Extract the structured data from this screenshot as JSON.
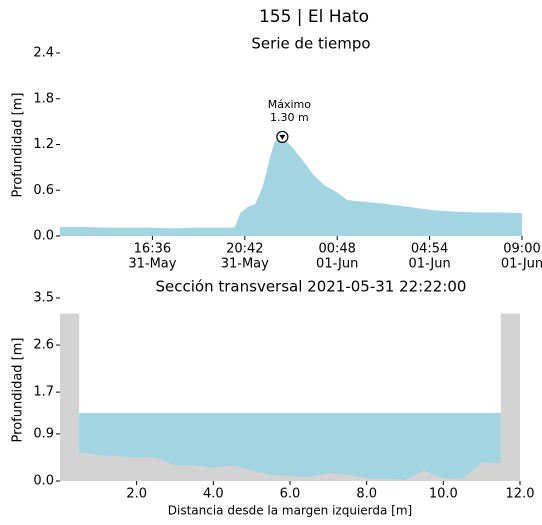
{
  "title": "155 | El Hato",
  "chart_data": [
    {
      "type": "area",
      "title": "Serie de tiempo",
      "y_label": "Profundidad [m]",
      "color": "#a2d4e2",
      "x": [
        "31-May 12:30",
        "31-May 13:30",
        "31-May 14:30",
        "31-May 15:30",
        "31-May 16:30",
        "31-May 17:30",
        "31-May 18:30",
        "31-May 19:30",
        "31-May 20:15",
        "31-May 20:30",
        "31-May 20:50",
        "31-May 21:10",
        "31-May 21:30",
        "31-May 21:45",
        "31-May 22:00",
        "31-May 22:10",
        "31-May 22:22",
        "31-May 22:45",
        "31-May 23:15",
        "31-May 23:45",
        "01-Jun 00:15",
        "01-Jun 00:45",
        "01-Jun 01:15",
        "01-Jun 02:00",
        "01-Jun 03:00",
        "01-Jun 04:00",
        "01-Jun 05:00",
        "01-Jun 06:00",
        "01-Jun 07:00",
        "01-Jun 08:00",
        "01-Jun 09:00"
      ],
      "values": [
        0.12,
        0.12,
        0.11,
        0.11,
        0.11,
        0.1,
        0.11,
        0.11,
        0.11,
        0.3,
        0.38,
        0.42,
        0.65,
        0.95,
        1.22,
        1.28,
        1.3,
        1.18,
        1.0,
        0.8,
        0.66,
        0.58,
        0.47,
        0.45,
        0.42,
        0.38,
        0.34,
        0.32,
        0.31,
        0.31,
        0.3
      ],
      "xlim": [
        "31-May 12:30",
        "01-Jun 09:00"
      ],
      "xticks": [
        {
          "value": "31-May 16:36",
          "label": [
            "16:36",
            "31-May"
          ]
        },
        {
          "value": "31-May 20:42",
          "label": [
            "20:42",
            "31-May"
          ]
        },
        {
          "value": "01-Jun 00:48",
          "label": [
            "00:48",
            "01-Jun"
          ]
        },
        {
          "value": "01-Jun 04:54",
          "label": [
            "04:54",
            "01-Jun"
          ]
        },
        {
          "value": "01-Jun 09:00",
          "label": [
            "09:00",
            "01-Jun"
          ]
        }
      ],
      "ylim": [
        0,
        2.4
      ],
      "yticks": [
        {
          "value": 0,
          "label": "0.0"
        },
        0.6,
        1.2,
        1.8,
        2.4
      ],
      "annotation": {
        "text": "Máximo",
        "value_label": "1.30 m",
        "x": "31-May 22:22",
        "y": 1.3
      }
    },
    {
      "type": "cross_section",
      "title": "Sección transversal 2021-05-31 22:22:00",
      "x_label": "Distancia desde la margen izquierda [m]",
      "y_label": "Profundidad [m]",
      "terrain_color": "#d3d3d3",
      "water_color": "#a2d4e2",
      "water_level": 1.3,
      "x": [
        0,
        0.5,
        0.5,
        1,
        2,
        2.5,
        3,
        3.5,
        4,
        4.5,
        5,
        5.5,
        6,
        6.5,
        7,
        7.5,
        8,
        8.5,
        9,
        9.5,
        10,
        10.5,
        11,
        11.5,
        11.5,
        12
      ],
      "values": [
        3.2,
        3.2,
        0.55,
        0.5,
        0.45,
        0.45,
        0.3,
        0.3,
        0.25,
        0.3,
        0.2,
        0.12,
        0.1,
        0.08,
        0.15,
        0.12,
        0.05,
        0.05,
        0.02,
        0.2,
        0.05,
        0.05,
        0.35,
        0.35,
        3.2,
        3.2
      ],
      "xlim": [
        0,
        12
      ],
      "xticks": [
        {
          "value": 2,
          "label": "2.0"
        },
        {
          "value": 4,
          "label": "4.0"
        },
        {
          "value": 6,
          "label": "6.0"
        },
        {
          "value": 8,
          "label": "8.0"
        },
        {
          "value": 10,
          "label": "10.0"
        },
        {
          "value": 12,
          "label": "12.0"
        }
      ],
      "ylim": [
        0,
        3.5
      ],
      "yticks": [
        {
          "value": 0,
          "label": "0.0"
        },
        0.9,
        1.7,
        2.6,
        3.5
      ]
    }
  ]
}
